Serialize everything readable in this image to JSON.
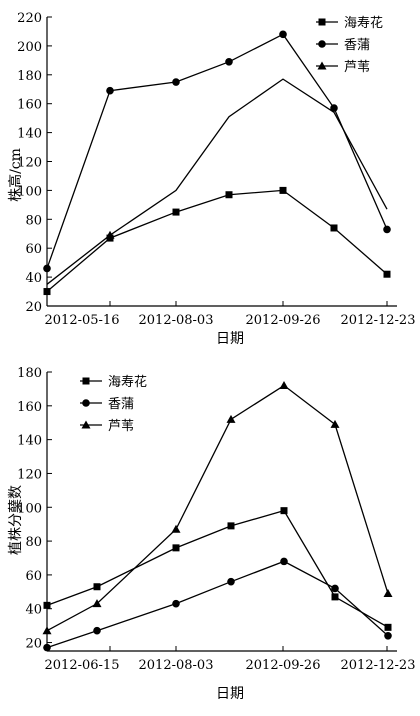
{
  "chart_data": [
    {
      "type": "line",
      "xlabel": "日期",
      "ylabel": "株高/cm",
      "x_ticks": [
        "2012-05-16",
        "2012-08-03",
        "2012-09-26",
        "2012-12-23"
      ],
      "yticks": [
        20,
        40,
        60,
        80,
        100,
        120,
        140,
        160,
        180,
        200,
        220
      ],
      "ylim": [
        20,
        220
      ],
      "legend_position": "top-right",
      "grid": false,
      "series": [
        {
          "name": "海寿花",
          "marker": "square",
          "values": [
            30,
            67,
            85,
            97,
            100,
            74,
            42
          ]
        },
        {
          "name": "香蒲",
          "marker": "circle",
          "values": [
            46,
            169,
            175,
            189,
            208,
            157,
            73
          ]
        },
        {
          "name": "芦苇",
          "marker": "triangle",
          "values": [
            35,
            69,
            100,
            151,
            177,
            154,
            87
          ]
        }
      ]
    },
    {
      "type": "line",
      "xlabel": "日期",
      "ylabel": "植株分蘖数",
      "x_ticks": [
        "2012-06-15",
        "2012-08-03",
        "2012-09-26",
        "2012-12-23"
      ],
      "yticks": [
        20,
        40,
        60,
        80,
        100,
        120,
        140,
        160,
        180
      ],
      "ylim": [
        15,
        180
      ],
      "legend_position": "top-left",
      "grid": false,
      "series": [
        {
          "name": "海寿花",
          "marker": "square",
          "values": [
            42,
            53,
            76,
            89,
            98,
            47,
            29
          ]
        },
        {
          "name": "香蒲",
          "marker": "circle",
          "values": [
            17,
            27,
            43,
            56,
            68,
            52,
            24
          ]
        },
        {
          "name": "芦苇",
          "marker": "triangle",
          "values": [
            27,
            43,
            87,
            152,
            172,
            149,
            49
          ]
        }
      ]
    }
  ]
}
